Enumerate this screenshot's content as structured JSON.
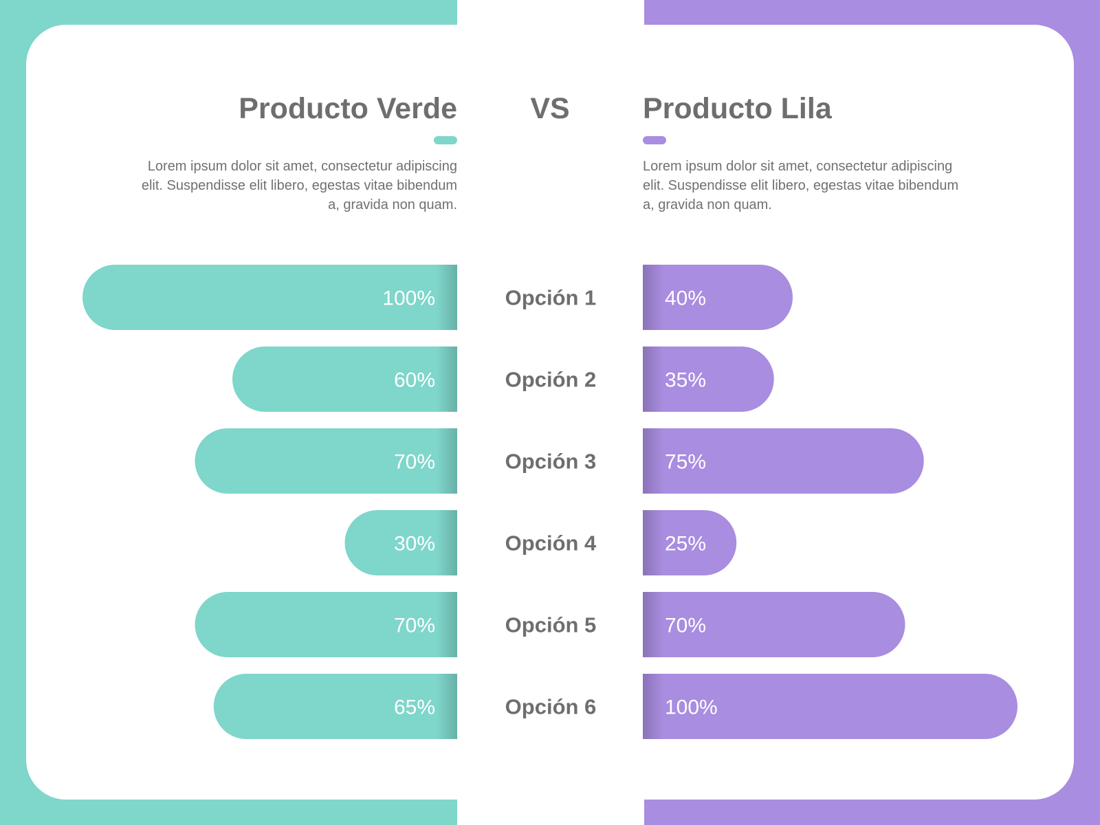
{
  "colors": {
    "green": "#7fd6cb",
    "lila": "#a98de0",
    "text": "#6e6e6e",
    "background": "#ffffff"
  },
  "header": {
    "left_title": "Producto Verde",
    "vs": "VS",
    "right_title": "Producto Lila",
    "left_description": "Lorem ipsum dolor sit amet, consectetur adipiscing elit. Suspendisse elit libero, egestas vitae bibendum a, gravida non quam.",
    "right_description": "Lorem ipsum dolor sit amet, consectetur adipiscing elit. Suspendisse elit libero, egestas vitae bibendum a, gravida non quam."
  },
  "chart_data": {
    "type": "bar",
    "orientation": "horizontal-diverging",
    "categories": [
      "Opción 1",
      "Opción 2",
      "Opción 3",
      "Opción 4",
      "Opción 5",
      "Opción 6"
    ],
    "series": [
      {
        "name": "Producto Verde",
        "color": "#7fd6cb",
        "values": [
          100,
          60,
          70,
          30,
          70,
          65
        ],
        "labels": [
          "100%",
          "60%",
          "70%",
          "30%",
          "70%",
          "65%"
        ]
      },
      {
        "name": "Producto Lila",
        "color": "#a98de0",
        "values": [
          40,
          35,
          75,
          25,
          70,
          100
        ],
        "labels": [
          "40%",
          "35%",
          "75%",
          "25%",
          "70%",
          "100%"
        ]
      }
    ],
    "xlim": [
      0,
      100
    ],
    "grid": false,
    "legend": "none"
  }
}
